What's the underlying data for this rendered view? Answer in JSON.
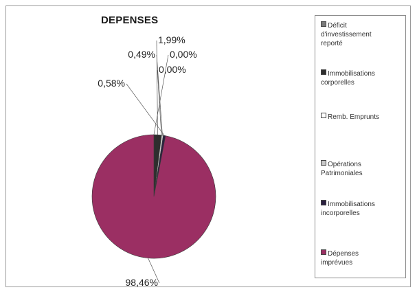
{
  "chart_data": {
    "type": "pie",
    "title": "DEPENSES",
    "categories": [
      "Déficit\nd'investissement\nreporté",
      "Immobilisations\ncorporelles",
      "Remb. Emprunts",
      "Opérations\nPatrimoniales",
      "Immobilisations\nincorporelles",
      "Dépenses\nimprévues"
    ],
    "values": [
      0.0,
      1.99,
      0.0,
      0.49,
      0.58,
      98.46
    ],
    "data_labels": [
      "0,00%",
      "1,99%",
      "0,00%",
      "0,49%",
      "0,58%",
      "98,46%"
    ],
    "colors": [
      "#7a7a7a",
      "#2e2e2e",
      "#ffffff",
      "#c8c8c8",
      "#2a2040",
      "#9b2f63"
    ],
    "legend_position": "right",
    "grid": false
  }
}
